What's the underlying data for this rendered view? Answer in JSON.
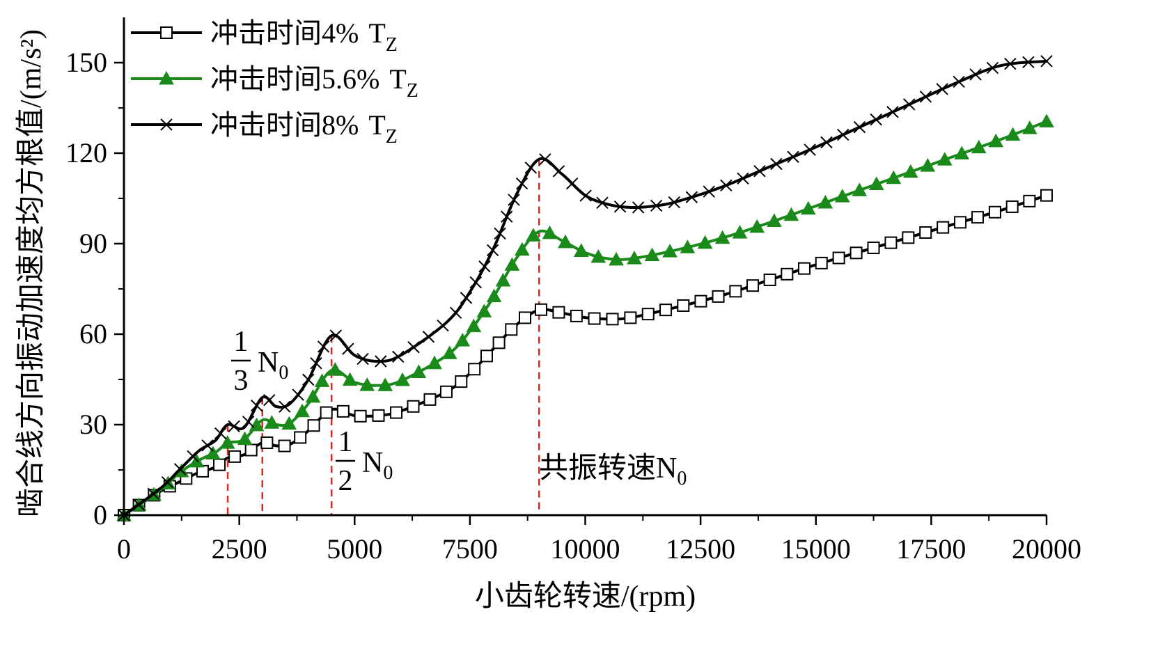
{
  "chart_data": {
    "type": "line",
    "xlabel": "小齿轮转速/(rpm)",
    "ylabel": "啮合线方向振动加速度均方根值/(m/s²)",
    "xlim": [
      0,
      20000
    ],
    "ylim": [
      0,
      165
    ],
    "xticks": [
      0,
      2500,
      5000,
      7500,
      10000,
      12500,
      15000,
      17500,
      20000
    ],
    "yticks": [
      0,
      30,
      60,
      90,
      120,
      150
    ],
    "grid": false,
    "legend_position": "top-left",
    "series": [
      {
        "name_main": "冲击时间4%",
        "name_sub_base": "T",
        "name_sub": "Z",
        "color": "#000000",
        "marker": "square",
        "x": [
          0,
          800,
          1200,
          1600,
          2000,
          2250,
          2600,
          3000,
          3300,
          3600,
          4000,
          4500,
          5000,
          5500,
          6000,
          7000,
          7500,
          8000,
          8500,
          9000,
          9500,
          10000,
          10500,
          11000,
          12000,
          13000,
          14000,
          15000,
          16000,
          17000,
          18000,
          19000,
          20000
        ],
        "y": [
          0,
          8,
          11,
          14,
          16,
          19,
          20,
          24,
          23,
          23.5,
          28,
          35,
          33,
          33,
          34.5,
          41,
          47,
          55,
          63,
          68,
          67,
          65.5,
          65,
          65.5,
          69,
          73,
          78,
          83,
          87.5,
          92,
          96.5,
          101,
          106
        ]
      },
      {
        "name_main": "冲击时间5.6%",
        "name_sub_base": "T",
        "name_sub": "Z",
        "color": "#1a8a1a",
        "marker": "triangle",
        "x": [
          0,
          800,
          1200,
          1600,
          2000,
          2250,
          2600,
          3000,
          3300,
          3600,
          4000,
          4500,
          5000,
          5500,
          6000,
          7000,
          7500,
          8000,
          8500,
          9000,
          9500,
          10000,
          10500,
          11000,
          12000,
          13000,
          14000,
          15000,
          16000,
          17000,
          18000,
          19000,
          20000
        ],
        "y": [
          0,
          8.5,
          14,
          18,
          21,
          24,
          25,
          31.5,
          30,
          30.5,
          37,
          48,
          44,
          43,
          44.5,
          53,
          61,
          72,
          85,
          94,
          91,
          87,
          85,
          85,
          88,
          92,
          97,
          102.5,
          108,
          113.5,
          119,
          124.5,
          130.5
        ]
      },
      {
        "name_main": "冲击时间8%",
        "name_sub_base": "T",
        "name_sub": "Z",
        "color": "#000000",
        "marker": "x",
        "x": [
          0,
          800,
          1200,
          1600,
          1800,
          2000,
          2250,
          2600,
          3000,
          3300,
          3600,
          4000,
          4500,
          5000,
          5500,
          6000,
          7000,
          7500,
          8000,
          8500,
          9000,
          9500,
          10000,
          10500,
          11000,
          11500,
          12000,
          13000,
          14000,
          15000,
          16000,
          17000,
          18000,
          19000,
          20000
        ],
        "y": [
          0,
          9,
          15,
          21,
          23,
          25,
          30,
          29,
          39,
          36,
          37,
          45,
          59.5,
          53,
          51,
          53,
          64,
          74,
          88,
          106,
          118,
          113,
          106,
          103,
          102,
          102.5,
          104,
          109,
          115.5,
          122,
          129,
          136,
          143,
          149,
          150.5
        ]
      }
    ],
    "annotations": {
      "third": {
        "num": "1",
        "den": "3",
        "base": "N",
        "sub": "0",
        "x": 3000,
        "y": 39
      },
      "half": {
        "num": "1",
        "den": "2",
        "base": "N",
        "sub": "0",
        "x": 4500,
        "y": 59.5
      },
      "resonance": {
        "text": "共振转速N",
        "sub": "0",
        "x": 9000,
        "y": 118
      },
      "extra_line": {
        "x": 2250,
        "y": 30
      }
    }
  }
}
